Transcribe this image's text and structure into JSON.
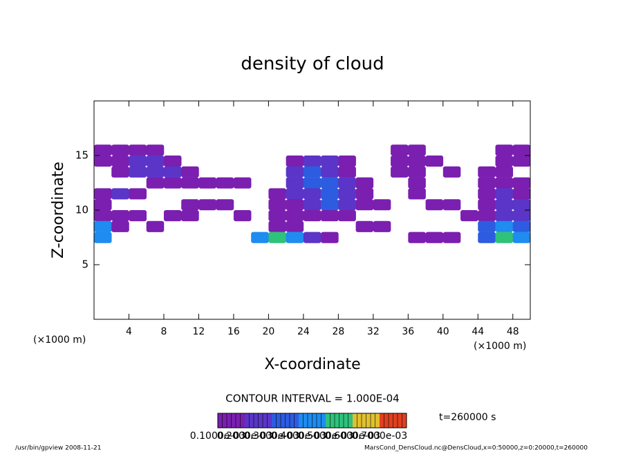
{
  "chart_data": {
    "type": "contour",
    "title": "density of cloud",
    "xlabel": "X-coordinate",
    "ylabel": "Z-coordinate",
    "x_unit": "(×1000 m)",
    "y_unit": "(×1000 m)",
    "contour_interval": "CONTOUR INTERVAL = 1.000E-04",
    "time_label": "t=260000 s",
    "footer_left": "/usr/bin/gpview  2008-11-21",
    "footer_right": "MarsCond_DensCloud.nc@DensCloud,x=0:50000,z=0:20000,t=260000",
    "xlim": [
      0,
      50
    ],
    "ylim": [
      0,
      20
    ],
    "xticks": [
      4,
      8,
      12,
      16,
      20,
      24,
      28,
      32,
      36,
      40,
      44,
      48
    ],
    "yticks": [
      5,
      10,
      15
    ],
    "x": [
      1,
      3,
      5,
      7,
      9,
      11,
      13,
      15,
      17,
      19,
      21,
      23,
      25,
      27,
      29,
      31,
      33,
      35,
      37,
      39,
      41,
      43,
      45,
      47,
      49
    ],
    "z": [
      15.5,
      14.5,
      13.5,
      12.5,
      11.5,
      10.5,
      9.5,
      8.5,
      7.5
    ],
    "values": [
      [
        0.0001,
        0.0001,
        0.0001,
        0.0001,
        null,
        null,
        null,
        null,
        null,
        null,
        null,
        null,
        null,
        null,
        null,
        null,
        null,
        0.0001,
        0.0001,
        null,
        null,
        null,
        null,
        0.0001,
        0.0001
      ],
      [
        0.0001,
        0.0001,
        0.0002,
        0.0002,
        0.0001,
        null,
        null,
        null,
        null,
        null,
        null,
        0.0001,
        0.0002,
        0.0002,
        0.0001,
        null,
        null,
        0.0001,
        0.0001,
        0.0001,
        null,
        null,
        null,
        0.0001,
        0.0001
      ],
      [
        null,
        0.0001,
        0.0002,
        0.0002,
        0.0002,
        0.0001,
        null,
        null,
        null,
        null,
        null,
        0.0002,
        0.0003,
        0.0002,
        0.0001,
        null,
        null,
        0.0001,
        0.0001,
        null,
        0.0001,
        null,
        0.0001,
        0.0001,
        null
      ],
      [
        null,
        null,
        null,
        0.0001,
        0.0001,
        0.0001,
        0.0001,
        0.0001,
        0.0001,
        null,
        null,
        0.0002,
        0.0003,
        0.0003,
        0.0002,
        0.0001,
        null,
        null,
        0.0001,
        null,
        null,
        null,
        0.0001,
        0.0001,
        0.0001
      ],
      [
        0.0001,
        0.0002,
        0.0001,
        null,
        null,
        null,
        null,
        null,
        null,
        null,
        0.0001,
        0.0002,
        0.0002,
        0.0003,
        0.0002,
        0.0001,
        null,
        null,
        0.0001,
        null,
        null,
        null,
        0.0001,
        0.0002,
        0.0001
      ],
      [
        0.0001,
        null,
        null,
        null,
        null,
        0.0001,
        0.0001,
        0.0001,
        null,
        null,
        0.0001,
        0.0001,
        0.0002,
        0.0003,
        0.0002,
        0.0001,
        0.0001,
        null,
        null,
        0.0001,
        0.0001,
        null,
        0.0001,
        0.0002,
        0.0002
      ],
      [
        0.0001,
        0.0001,
        0.0001,
        null,
        0.0001,
        0.0001,
        null,
        null,
        0.0001,
        null,
        0.0001,
        0.0001,
        0.0001,
        0.0001,
        0.0001,
        null,
        null,
        null,
        null,
        null,
        null,
        0.0001,
        0.0001,
        0.0002,
        0.0002
      ],
      [
        0.0004,
        0.0001,
        null,
        0.0001,
        null,
        null,
        null,
        null,
        null,
        null,
        0.0001,
        0.0001,
        null,
        null,
        null,
        0.0001,
        0.0001,
        null,
        null,
        null,
        null,
        null,
        0.0003,
        0.0004,
        0.0003
      ],
      [
        0.0004,
        null,
        null,
        null,
        null,
        null,
        null,
        null,
        null,
        0.0004,
        0.0005,
        0.0004,
        0.0002,
        0.0001,
        null,
        null,
        null,
        null,
        0.0001,
        0.0001,
        0.0001,
        null,
        0.0003,
        0.0005,
        0.0004
      ]
    ],
    "levels": [
      {
        "value": 0.0001,
        "label": "0.1000e-03"
      },
      {
        "value": 0.0002,
        "label": "0.2000e-03"
      },
      {
        "value": 0.0003,
        "label": "0.3000e-03"
      },
      {
        "value": 0.0004,
        "label": "0.4000e-03"
      },
      {
        "value": 0.0005,
        "label": "0.5000e-03"
      },
      {
        "value": 0.0006,
        "label": "0.6000e-03"
      },
      {
        "value": 0.0007,
        "label": "0.7000e-03"
      }
    ],
    "colors": [
      "#7a1fb0",
      "#5a35c8",
      "#2d5ce0",
      "#1e8cf0",
      "#2ec27a",
      "#e0c030",
      "#e04020"
    ]
  }
}
